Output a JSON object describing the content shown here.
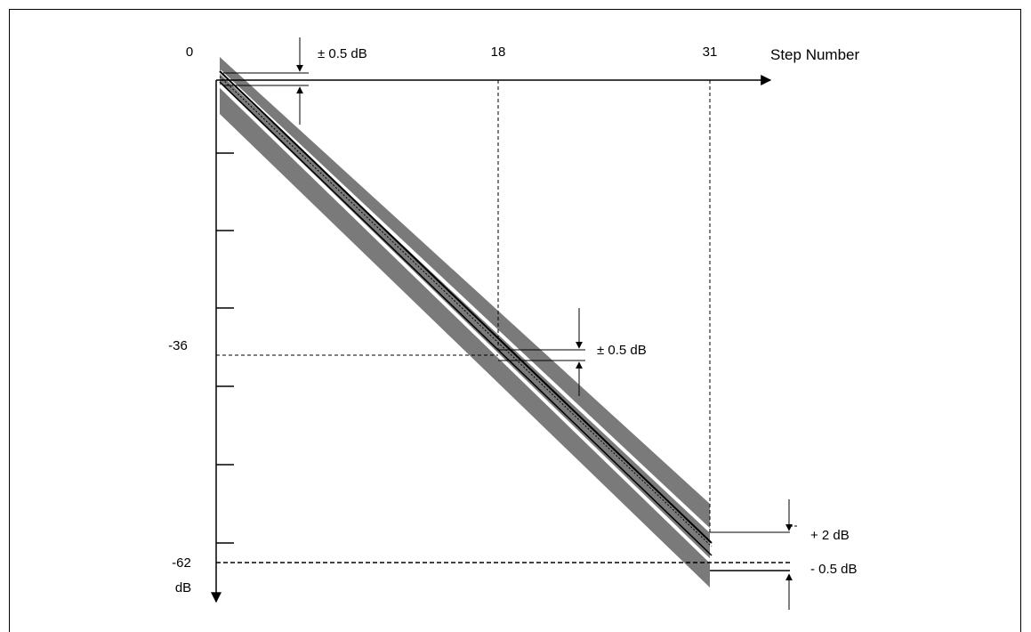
{
  "x_axis": {
    "title": "Step Number",
    "tick_labels": [
      "0",
      "18",
      "31"
    ]
  },
  "y_axis": {
    "unit": "dB",
    "tick_labels": [
      "-36",
      "-62"
    ]
  },
  "annotations": {
    "top_tolerance": "± 0.5 dB",
    "mid_tolerance": "± 0.5 dB",
    "end_upper": "+ 2 dB",
    "end_lower": "- 0.5 dB"
  },
  "colors": {
    "band": "#7a7a7a",
    "line": "#000000"
  },
  "diagram_data": {
    "steps": [
      0,
      18,
      31
    ],
    "levels_db": [
      0,
      -36,
      -62
    ],
    "tolerance_at_0": "±0.5 dB",
    "tolerance_at_18": "±0.5 dB",
    "tolerance_at_31": "+2 dB / -0.5 dB"
  }
}
